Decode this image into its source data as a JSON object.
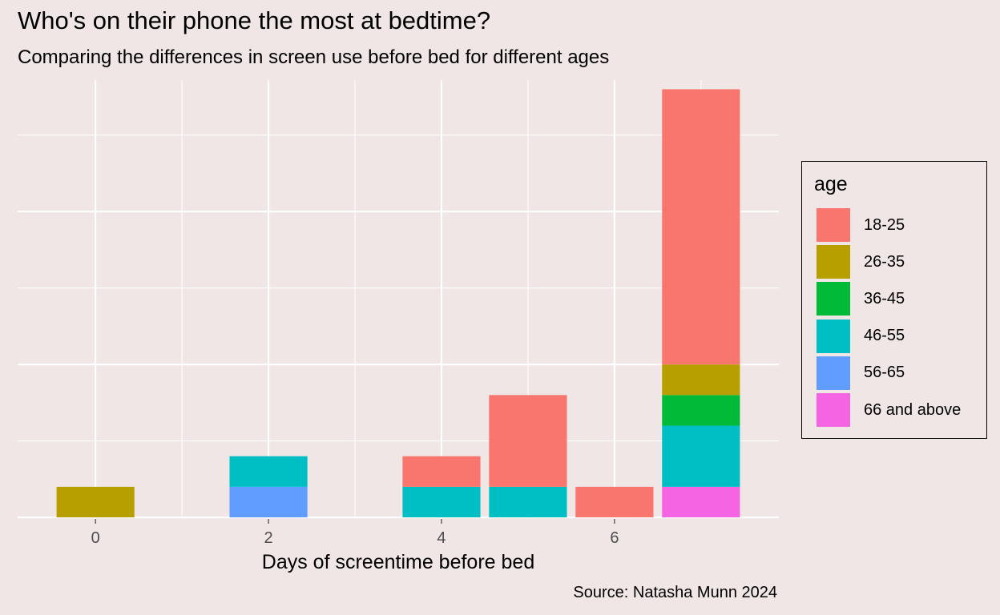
{
  "title": "Who's on their phone the most at bedtime?",
  "subtitle": "Comparing the differences in screen use before bed for different ages",
  "caption": "Source: Natasha Munn 2024",
  "chart_data": {
    "type": "bar",
    "stacked": true,
    "title": "Who's on their phone the most at bedtime?",
    "subtitle": "Comparing the differences in screen use before bed for different ages",
    "xlabel": "Days of screentime before bed",
    "ylabel": "",
    "x_ticks": [
      0,
      2,
      4,
      6
    ],
    "y_ticks_labeled": false,
    "xlim": [
      -0.9,
      7.9
    ],
    "ylim": [
      -0.05,
      14.3
    ],
    "grid": true,
    "legend_position": "right",
    "legend_title": "age",
    "x": [
      0,
      2,
      4,
      5,
      6,
      7
    ],
    "series": [
      {
        "name": "18-25",
        "color": "#F8766D",
        "values": [
          0,
          0,
          1,
          3,
          1,
          9
        ]
      },
      {
        "name": "26-35",
        "color": "#B79F00",
        "values": [
          1,
          0,
          0,
          0,
          0,
          1
        ]
      },
      {
        "name": "36-45",
        "color": "#00BA38",
        "values": [
          0,
          0,
          0,
          0,
          0,
          1
        ]
      },
      {
        "name": "46-55",
        "color": "#00BFC4",
        "values": [
          0,
          1,
          1,
          1,
          0,
          2
        ]
      },
      {
        "name": "56-65",
        "color": "#619CFF",
        "values": [
          0,
          1,
          0,
          0,
          0,
          0
        ]
      },
      {
        "name": "66 and above",
        "color": "#F564E3",
        "values": [
          0,
          0,
          0,
          0,
          0,
          1
        ]
      }
    ]
  }
}
